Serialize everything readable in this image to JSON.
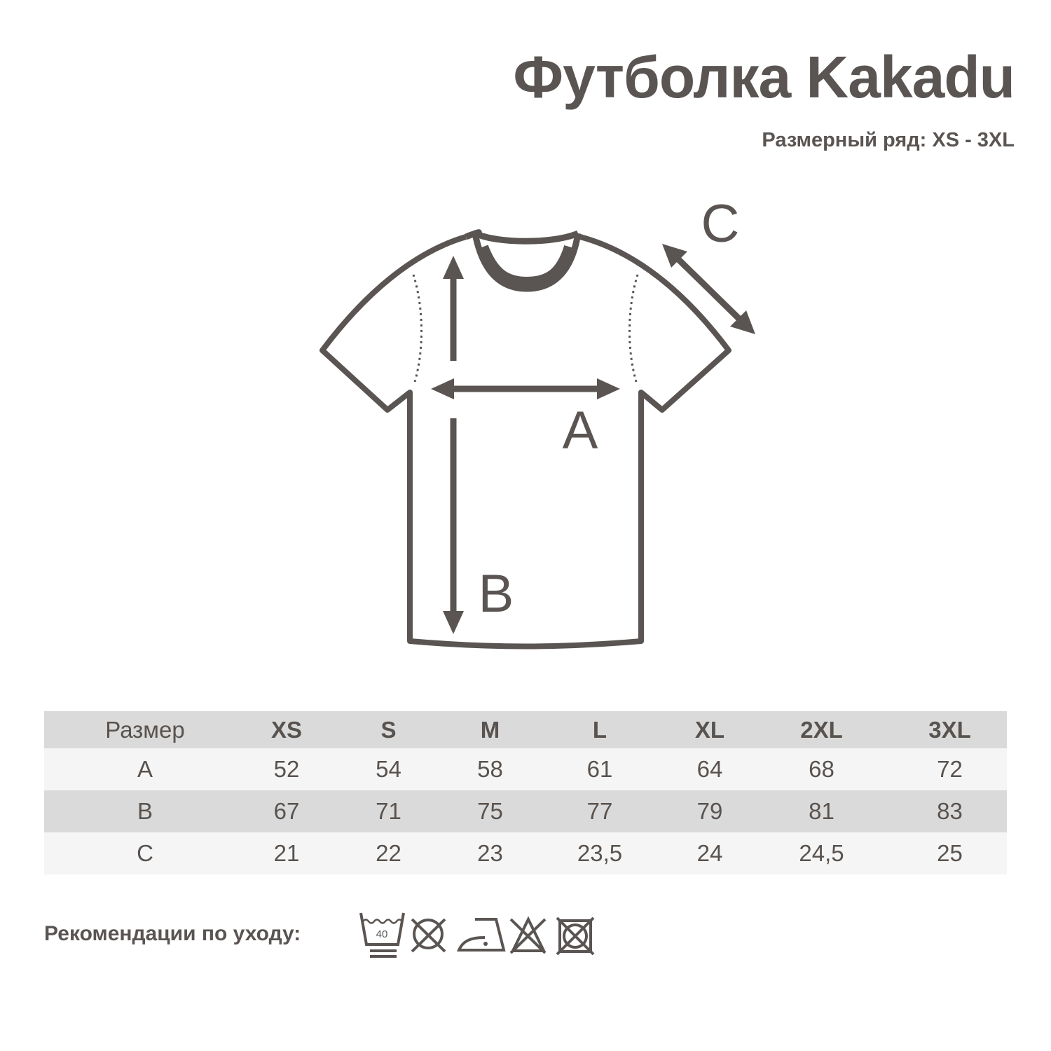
{
  "title": "Футболка Kakadu",
  "subtitle": "Размерный ряд: XS - 3XL",
  "diagram": {
    "label_a": "A",
    "label_b": "B",
    "label_c": "C"
  },
  "table": {
    "header": [
      "Размер",
      "XS",
      "S",
      "M",
      "L",
      "XL",
      "2XL",
      "3XL"
    ],
    "rows": [
      [
        "A",
        "52",
        "54",
        "58",
        "61",
        "64",
        "68",
        "72"
      ],
      [
        "B",
        "67",
        "71",
        "75",
        "77",
        "79",
        "81",
        "83"
      ],
      [
        "C",
        "21",
        "22",
        "23",
        "23,5",
        "24",
        "24,5",
        "25"
      ]
    ]
  },
  "care": {
    "label": "Рекомендации по уходу:",
    "wash_temp": "40",
    "icons": [
      "wash-40-gentle-icon",
      "no-tumble-dry-icon",
      "iron-low-icon",
      "no-bleach-icon",
      "no-dry-clean-icon"
    ]
  },
  "colors": {
    "text": "#5a5552",
    "header_row": "#dadada",
    "light_row": "#f5f5f5"
  }
}
